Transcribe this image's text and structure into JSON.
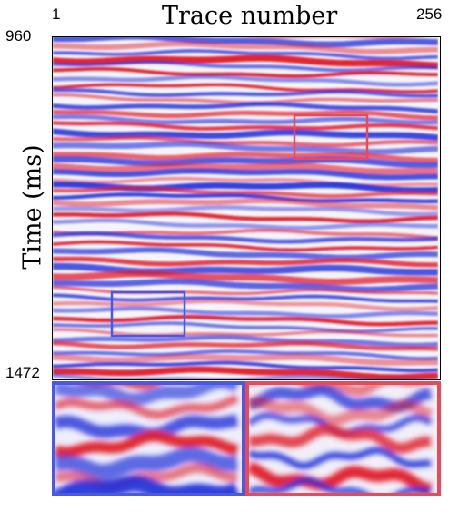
{
  "figure": {
    "title": "Trace number",
    "ylabel": "Time (ms)",
    "x_ticks": [
      "1",
      "256"
    ],
    "y_ticks": [
      "960",
      "1472"
    ]
  },
  "image": {
    "description_colors": {
      "positive": "#e0202a",
      "negative": "#1f2fd8",
      "zero": "#ffffff"
    },
    "boxes": [
      {
        "name": "red-box",
        "color": "#ea4a58"
      },
      {
        "name": "blue-box",
        "color": "#4a58e8"
      }
    ]
  }
}
